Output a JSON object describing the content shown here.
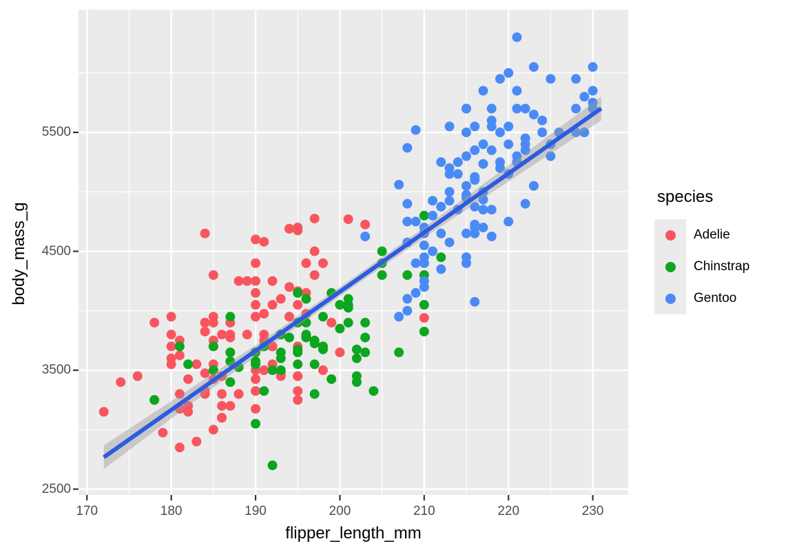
{
  "figure": {
    "background": "#FFFFFF"
  },
  "chart_data": {
    "type": "scatter",
    "title": "",
    "xlabel": "flipper_length_mm",
    "ylabel": "body_mass_g",
    "xlim": [
      169.0,
      234.2
    ],
    "ylim": [
      2451,
      6532
    ],
    "grid": true,
    "x_ticks": [
      170,
      180,
      190,
      200,
      210,
      220,
      230
    ],
    "x_minor_ticks": [
      175,
      185,
      195,
      205,
      215,
      225
    ],
    "y_ticks": [
      2500,
      3500,
      4500,
      5500
    ],
    "y_minor_ticks": [
      3000,
      4000,
      5000,
      6000
    ],
    "panel": {
      "background": "#EBEBEB",
      "grid_color": "#FFFFFF",
      "tick_color": "#333333",
      "tick_label_color": "#4D4D4D"
    },
    "legend": {
      "title": "species",
      "position": "right",
      "key_background": "#EBEBEB",
      "items": [
        {
          "label": "Adelie",
          "color": "#F8555E"
        },
        {
          "label": "Chinstrap",
          "color": "#0CA61F"
        },
        {
          "label": "Gentoo",
          "color": "#4A8AF5"
        }
      ]
    },
    "smooth": {
      "method": "lm",
      "line_color": "#2D5BE0",
      "line_width": 6,
      "band_color": "#999999",
      "band_opacity": 0.42,
      "x": [
        172,
        181,
        191,
        201,
        211,
        221,
        231
      ],
      "fit": [
        2768,
        3216,
        3713,
        4210,
        4707,
        5204,
        5701
      ],
      "upper": [
        2868,
        3286,
        3758,
        4248,
        4752,
        5274,
        5801
      ],
      "lower": [
        2668,
        3146,
        3668,
        4172,
        4662,
        5134,
        5601
      ]
    },
    "series": [
      {
        "name": "Adelie",
        "color": "#F8555E",
        "points": [
          [
            181,
            3750
          ],
          [
            186,
            3800
          ],
          [
            195,
            3250
          ],
          [
            193,
            3450
          ],
          [
            190,
            3650
          ],
          [
            181,
            3625
          ],
          [
            195,
            4675
          ],
          [
            193,
            3475
          ],
          [
            190,
            4250
          ],
          [
            186,
            3300
          ],
          [
            180,
            3700
          ],
          [
            182,
            3200
          ],
          [
            191,
            3800
          ],
          [
            198,
            4400
          ],
          [
            185,
            3700
          ],
          [
            195,
            3450
          ],
          [
            197,
            4500
          ],
          [
            184,
            3325
          ],
          [
            194,
            4200
          ],
          [
            174,
            3400
          ],
          [
            180,
            3600
          ],
          [
            189,
            3800
          ],
          [
            185,
            3950
          ],
          [
            180,
            3800
          ],
          [
            187,
            3800
          ],
          [
            183,
            3550
          ],
          [
            187,
            3200
          ],
          [
            172,
            3150
          ],
          [
            180,
            3950
          ],
          [
            178,
            3250
          ],
          [
            178,
            3900
          ],
          [
            188,
            3300
          ],
          [
            184,
            3900
          ],
          [
            195,
            3325
          ],
          [
            196,
            4150
          ],
          [
            190,
            3950
          ],
          [
            180,
            3550
          ],
          [
            181,
            3300
          ],
          [
            184,
            4650
          ],
          [
            182,
            3150
          ],
          [
            195,
            3900
          ],
          [
            186,
            3100
          ],
          [
            196,
            4400
          ],
          [
            185,
            3000
          ],
          [
            190,
            4600
          ],
          [
            182,
            3425
          ],
          [
            179,
            2975
          ],
          [
            190,
            4150
          ],
          [
            191,
            3500
          ],
          [
            186,
            3450
          ],
          [
            188,
            3525
          ],
          [
            190,
            3950
          ],
          [
            200,
            3650
          ],
          [
            187,
            3650
          ],
          [
            191,
            3700
          ],
          [
            186,
            3200
          ],
          [
            193,
            3800
          ],
          [
            181,
            3175
          ],
          [
            194,
            4690
          ],
          [
            185,
            3900
          ],
          [
            195,
            4700
          ],
          [
            185,
            3550
          ],
          [
            192,
            4250
          ],
          [
            184,
            3300
          ],
          [
            192,
            3700
          ],
          [
            195,
            3450
          ],
          [
            188,
            4250
          ],
          [
            190,
            3325
          ],
          [
            198,
            3500
          ],
          [
            190,
            3425
          ],
          [
            190,
            3175
          ],
          [
            196,
            3975
          ],
          [
            197,
            4300
          ],
          [
            190,
            3500
          ],
          [
            195,
            4165
          ],
          [
            191,
            3750
          ],
          [
            184,
            3825
          ],
          [
            187,
            3775
          ],
          [
            195,
            3700
          ],
          [
            189,
            4250
          ],
          [
            196,
            3775
          ],
          [
            187,
            3900
          ],
          [
            193,
            4100
          ],
          [
            191,
            3975
          ],
          [
            191,
            4580
          ],
          [
            185,
            3425
          ],
          [
            195,
            4150
          ],
          [
            185,
            3750
          ],
          [
            192,
            3700
          ],
          [
            184,
            3900
          ],
          [
            192,
            3550
          ],
          [
            195,
            4050
          ],
          [
            188,
            3300
          ],
          [
            190,
            4400
          ],
          [
            198,
            3700
          ],
          [
            190,
            4050
          ],
          [
            193,
            3800
          ],
          [
            194,
            3950
          ],
          [
            185,
            4300
          ],
          [
            192,
            4050
          ],
          [
            184,
            3475
          ],
          [
            199,
            3900
          ],
          [
            197,
            4775
          ],
          [
            201,
            4770
          ],
          [
            203,
            4725
          ],
          [
            210,
            3940
          ],
          [
            181,
            2850
          ],
          [
            176,
            3450
          ],
          [
            183,
            2900
          ],
          [
            186,
            3100
          ]
        ]
      },
      {
        "name": "Chinstrap",
        "color": "#0CA61F",
        "points": [
          [
            192,
            3500
          ],
          [
            196,
            3900
          ],
          [
            193,
            3650
          ],
          [
            188,
            3525
          ],
          [
            197,
            3725
          ],
          [
            198,
            3950
          ],
          [
            178,
            3250
          ],
          [
            197,
            3750
          ],
          [
            195,
            4150
          ],
          [
            198,
            3700
          ],
          [
            193,
            3800
          ],
          [
            194,
            3775
          ],
          [
            185,
            3700
          ],
          [
            201,
            4050
          ],
          [
            190,
            3575
          ],
          [
            201,
            4100
          ],
          [
            197,
            3300
          ],
          [
            181,
            3700
          ],
          [
            190,
            3650
          ],
          [
            195,
            3550
          ],
          [
            182,
            3550
          ],
          [
            191,
            3700
          ],
          [
            187,
            3575
          ],
          [
            193,
            3600
          ],
          [
            195,
            3900
          ],
          [
            197,
            3550
          ],
          [
            200,
            4050
          ],
          [
            200,
            3850
          ],
          [
            191,
            3325
          ],
          [
            205,
            4400
          ],
          [
            187,
            3950
          ],
          [
            201,
            4025
          ],
          [
            187,
            3650
          ],
          [
            203,
            3650
          ],
          [
            195,
            3650
          ],
          [
            199,
            4150
          ],
          [
            195,
            3675
          ],
          [
            210,
            4800
          ],
          [
            192,
            2700
          ],
          [
            205,
            4500
          ],
          [
            210,
            4300
          ],
          [
            187,
            3400
          ],
          [
            196,
            3775
          ],
          [
            196,
            4100
          ],
          [
            196,
            3800
          ],
          [
            201,
            3900
          ],
          [
            190,
            3550
          ],
          [
            212,
            4450
          ],
          [
            203,
            3775
          ],
          [
            210,
            4050
          ],
          [
            190,
            3050
          ],
          [
            202,
            3450
          ],
          [
            205,
            4300
          ],
          [
            185,
            3500
          ],
          [
            202,
            3675
          ],
          [
            204,
            3325
          ],
          [
            207,
            3650
          ],
          [
            202,
            3600
          ],
          [
            193,
            3500
          ],
          [
            210,
            3825
          ],
          [
            198,
            3675
          ],
          [
            202,
            3400
          ],
          [
            199,
            3425
          ],
          [
            203,
            3900
          ],
          [
            208,
            4300
          ]
        ]
      },
      {
        "name": "Gentoo",
        "color": "#4A8AF5",
        "points": [
          [
            211,
            4500
          ],
          [
            230,
            5700
          ],
          [
            210,
            4450
          ],
          [
            218,
            5700
          ],
          [
            215,
            4450
          ],
          [
            210,
            4550
          ],
          [
            211,
            4800
          ],
          [
            219,
            5200
          ],
          [
            209,
            4400
          ],
          [
            215,
            4650
          ],
          [
            214,
            5150
          ],
          [
            216,
            4650
          ],
          [
            213,
            5550
          ],
          [
            210,
            4650
          ],
          [
            217,
            5850
          ],
          [
            210,
            4200
          ],
          [
            221,
            5850
          ],
          [
            209,
            4150
          ],
          [
            221,
            6300
          ],
          [
            218,
            5350
          ],
          [
            215,
            5700
          ],
          [
            213,
            5000
          ],
          [
            215,
            4400
          ],
          [
            215,
            5050
          ],
          [
            215,
            5300
          ],
          [
            215,
            4950
          ],
          [
            216,
            5350
          ],
          [
            215,
            5700
          ],
          [
            210,
            4250
          ],
          [
            220,
            5550
          ],
          [
            222,
            4900
          ],
          [
            209,
            4750
          ],
          [
            207,
            3950
          ],
          [
            230,
            5750
          ],
          [
            220,
            5400
          ],
          [
            220,
            4750
          ],
          [
            213,
            5200
          ],
          [
            219,
            5950
          ],
          [
            208,
            4750
          ],
          [
            208,
            4900
          ],
          [
            216,
            4875
          ],
          [
            228,
            5950
          ],
          [
            211,
            4925
          ],
          [
            218,
            4850
          ],
          [
            228,
            5700
          ],
          [
            212,
            4875
          ],
          [
            218,
            5550
          ],
          [
            218,
            4625
          ],
          [
            212,
            5250
          ],
          [
            230,
            5850
          ],
          [
            218,
            5600
          ],
          [
            228,
            5500
          ],
          [
            224,
            5500
          ],
          [
            213,
            4925
          ],
          [
            223,
            6050
          ],
          [
            216,
            5125
          ],
          [
            222,
            5450
          ],
          [
            219,
            5250
          ],
          [
            225,
            5400
          ],
          [
            217,
            4935
          ],
          [
            222,
            5700
          ],
          [
            216,
            4700
          ],
          [
            212,
            4650
          ],
          [
            224,
            5600
          ],
          [
            213,
            5150
          ],
          [
            229,
            5800
          ],
          [
            217,
            5235
          ],
          [
            221,
            5700
          ],
          [
            216,
            4725
          ],
          [
            222,
            5400
          ],
          [
            217,
            5000
          ],
          [
            215,
            4975
          ],
          [
            210,
            4700
          ],
          [
            226,
            5500
          ],
          [
            213,
            4575
          ],
          [
            214,
            5250
          ],
          [
            217,
            5400
          ],
          [
            214,
            4850
          ],
          [
            221,
            5300
          ],
          [
            225,
            5300
          ],
          [
            217,
            4850
          ],
          [
            220,
            6000
          ],
          [
            208,
            4575
          ],
          [
            220,
            5150
          ],
          [
            208,
            4000
          ],
          [
            225,
            5950
          ],
          [
            210,
            4400
          ],
          [
            219,
            5500
          ],
          [
            208,
            4100
          ],
          [
            215,
            5500
          ],
          [
            222,
            5350
          ],
          [
            216,
            5100
          ],
          [
            223,
            5650
          ],
          [
            221,
            5250
          ],
          [
            217,
            4700
          ],
          [
            216,
            5550
          ],
          [
            230,
            6050
          ],
          [
            229,
            5500
          ],
          [
            223,
            5050
          ],
          [
            216,
            4075
          ],
          [
            209,
            5520
          ],
          [
            208,
            5370
          ],
          [
            207,
            5060
          ],
          [
            203,
            4625
          ],
          [
            212,
            4350
          ]
        ]
      }
    ]
  }
}
